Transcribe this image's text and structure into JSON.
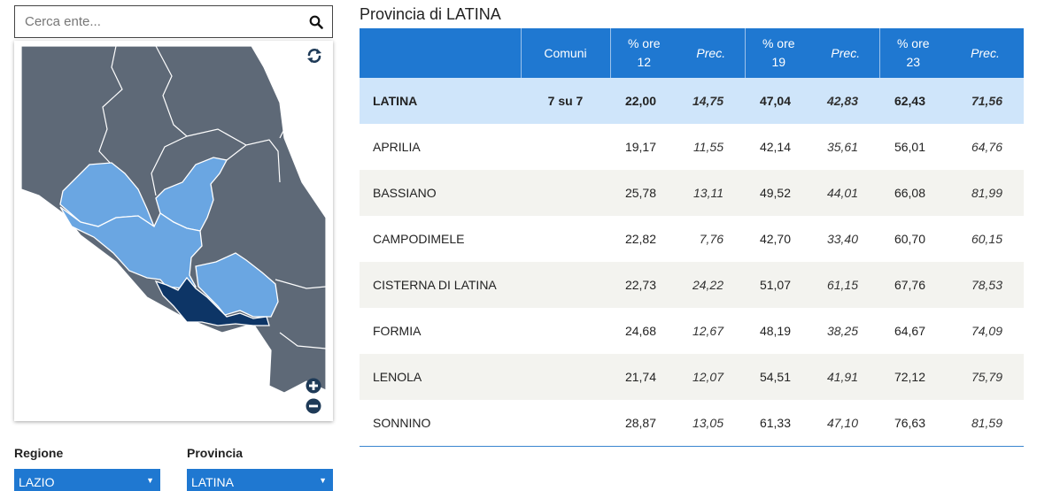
{
  "search": {
    "placeholder": "Cerca ente..."
  },
  "icons": {
    "search": "search-icon",
    "refresh": "refresh-icon",
    "zoom_in": "plus-circle-icon",
    "zoom_out": "minus-circle-icon",
    "caret": "caret-down-icon"
  },
  "colors": {
    "header": "#1f78d1",
    "total_row": "#cfe5fa",
    "alt_row": "#f3f3ef",
    "map_base": "#5e6977",
    "map_region": "#6aa6e2",
    "map_selected": "#0d3566"
  },
  "filters": {
    "regione": {
      "label": "Regione",
      "value": "LAZIO"
    },
    "provincia": {
      "label": "Provincia",
      "value": "LATINA"
    }
  },
  "title": "Provincia di LATINA",
  "table": {
    "headers": {
      "comuni": "Comuni",
      "ore12_line1": "% ore",
      "ore12_line2": "12",
      "prec12": "Prec.",
      "ore19_line1": "% ore",
      "ore19_line2": "19",
      "prec19": "Prec.",
      "ore23_line1": "% ore",
      "ore23_line2": "23",
      "prec23": "Prec."
    },
    "total": {
      "name": "LATINA",
      "comuni": "7 su 7",
      "o12": "22,00",
      "p12": "14,75",
      "o19": "47,04",
      "p19": "42,83",
      "o23": "62,43",
      "p23": "71,56"
    },
    "rows": [
      {
        "name": "APRILIA",
        "o12": "19,17",
        "p12": "11,55",
        "o19": "42,14",
        "p19": "35,61",
        "o23": "56,01",
        "p23": "64,76"
      },
      {
        "name": "BASSIANO",
        "o12": "25,78",
        "p12": "13,11",
        "o19": "49,52",
        "p19": "44,01",
        "o23": "66,08",
        "p23": "81,99"
      },
      {
        "name": "CAMPODIMELE",
        "o12": "22,82",
        "p12": "7,76",
        "o19": "42,70",
        "p19": "33,40",
        "o23": "60,70",
        "p23": "60,15"
      },
      {
        "name": "CISTERNA DI LATINA",
        "o12": "22,73",
        "p12": "24,22",
        "o19": "51,07",
        "p19": "61,15",
        "o23": "67,76",
        "p23": "78,53"
      },
      {
        "name": "FORMIA",
        "o12": "24,68",
        "p12": "12,67",
        "o19": "48,19",
        "p19": "38,25",
        "o23": "64,67",
        "p23": "74,09"
      },
      {
        "name": "LENOLA",
        "o12": "21,74",
        "p12": "12,07",
        "o19": "54,51",
        "p19": "41,91",
        "o23": "72,12",
        "p23": "75,79"
      },
      {
        "name": "SONNINO",
        "o12": "28,87",
        "p12": "13,05",
        "o19": "61,33",
        "p19": "47,10",
        "o23": "76,63",
        "p23": "81,59"
      }
    ]
  }
}
